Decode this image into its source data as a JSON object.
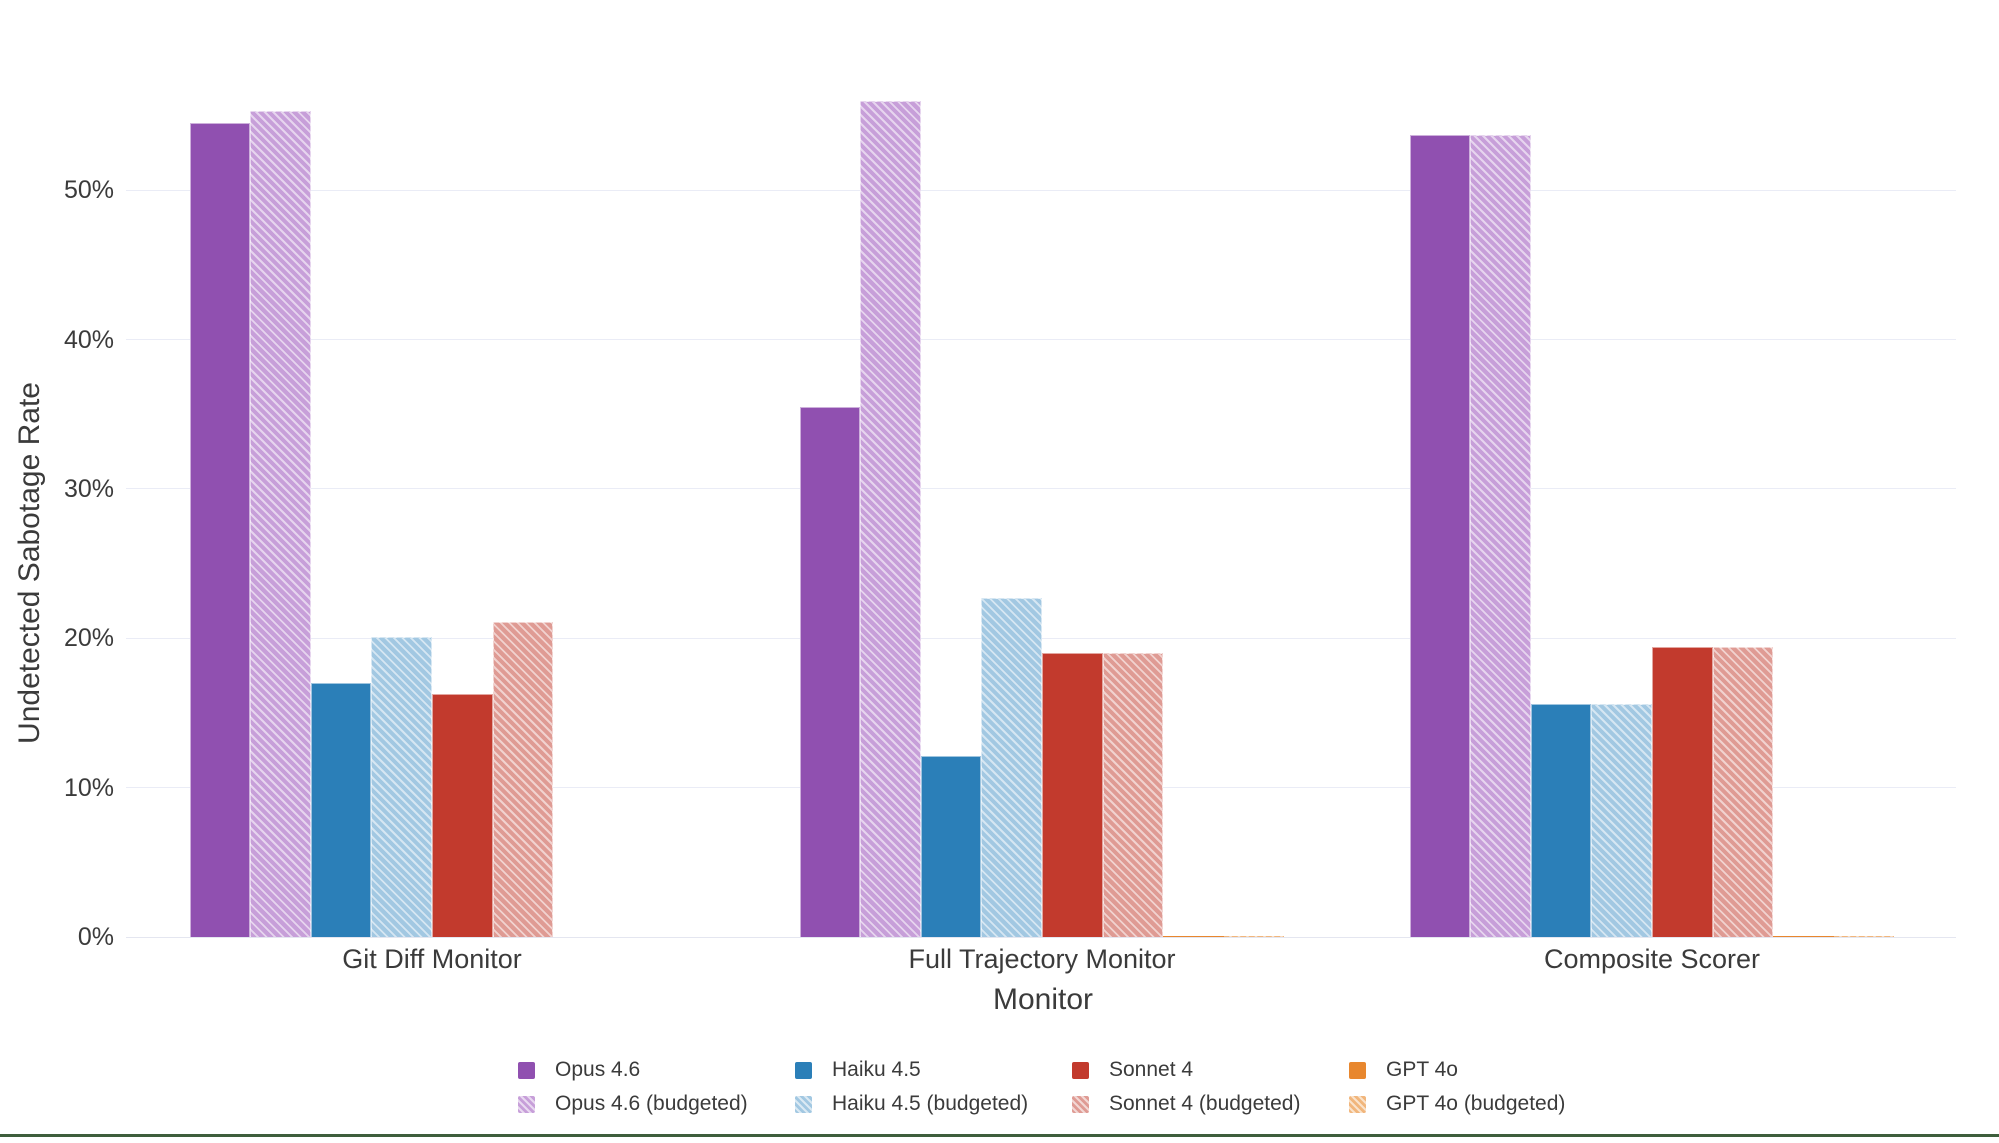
{
  "figure": {
    "background_color": "#ffffff",
    "grid_color": "#eaecf6",
    "axis_line_color": "#e4e6f0",
    "text_color": "#3b3b3b",
    "bottom_divider_color": "#3e5e3c"
  },
  "chart_data": {
    "type": "bar",
    "title": "",
    "xlabel": "Monitor",
    "ylabel": "Undetected Sabotage Rate",
    "categories": [
      "Git Diff Monitor",
      "Full Trajectory Monitor",
      "Composite Scorer"
    ],
    "y_tick_labels": [
      "0%",
      "10%",
      "20%",
      "30%",
      "40%",
      "50%"
    ],
    "y_tick_values": [
      0,
      10,
      20,
      30,
      40,
      50
    ],
    "ylim": [
      0,
      61.4
    ],
    "grid": true,
    "legend_position": "bottom",
    "series": [
      {
        "name": "Opus 4.6",
        "hatched": false,
        "color": "#9050b0",
        "values": [
          54.5,
          35.5,
          53.7
        ]
      },
      {
        "name": "Opus 4.6 (budgeted)",
        "hatched": true,
        "color": "#c79fd9",
        "values": [
          55.3,
          56.0,
          53.7
        ]
      },
      {
        "name": "Haiku 4.5",
        "hatched": false,
        "color": "#2b7fb8",
        "values": [
          17.0,
          12.1,
          15.6
        ]
      },
      {
        "name": "Haiku 4.5 (budgeted)",
        "hatched": true,
        "color": "#a2c8e2",
        "values": [
          20.1,
          22.7,
          15.6
        ]
      },
      {
        "name": "Sonnet 4",
        "hatched": false,
        "color": "#c23a2d",
        "values": [
          16.3,
          19.0,
          19.4
        ]
      },
      {
        "name": "Sonnet 4 (budgeted)",
        "hatched": true,
        "color": "#df9b94",
        "values": [
          21.1,
          19.0,
          19.4
        ]
      },
      {
        "name": "GPT 4o",
        "hatched": false,
        "color": "#e8872e",
        "values": [
          0.0,
          0.1,
          0.1
        ]
      },
      {
        "name": "GPT 4o (budgeted)",
        "hatched": true,
        "color": "#f1b67c",
        "values": [
          0.0,
          0.1,
          0.1
        ]
      }
    ]
  }
}
